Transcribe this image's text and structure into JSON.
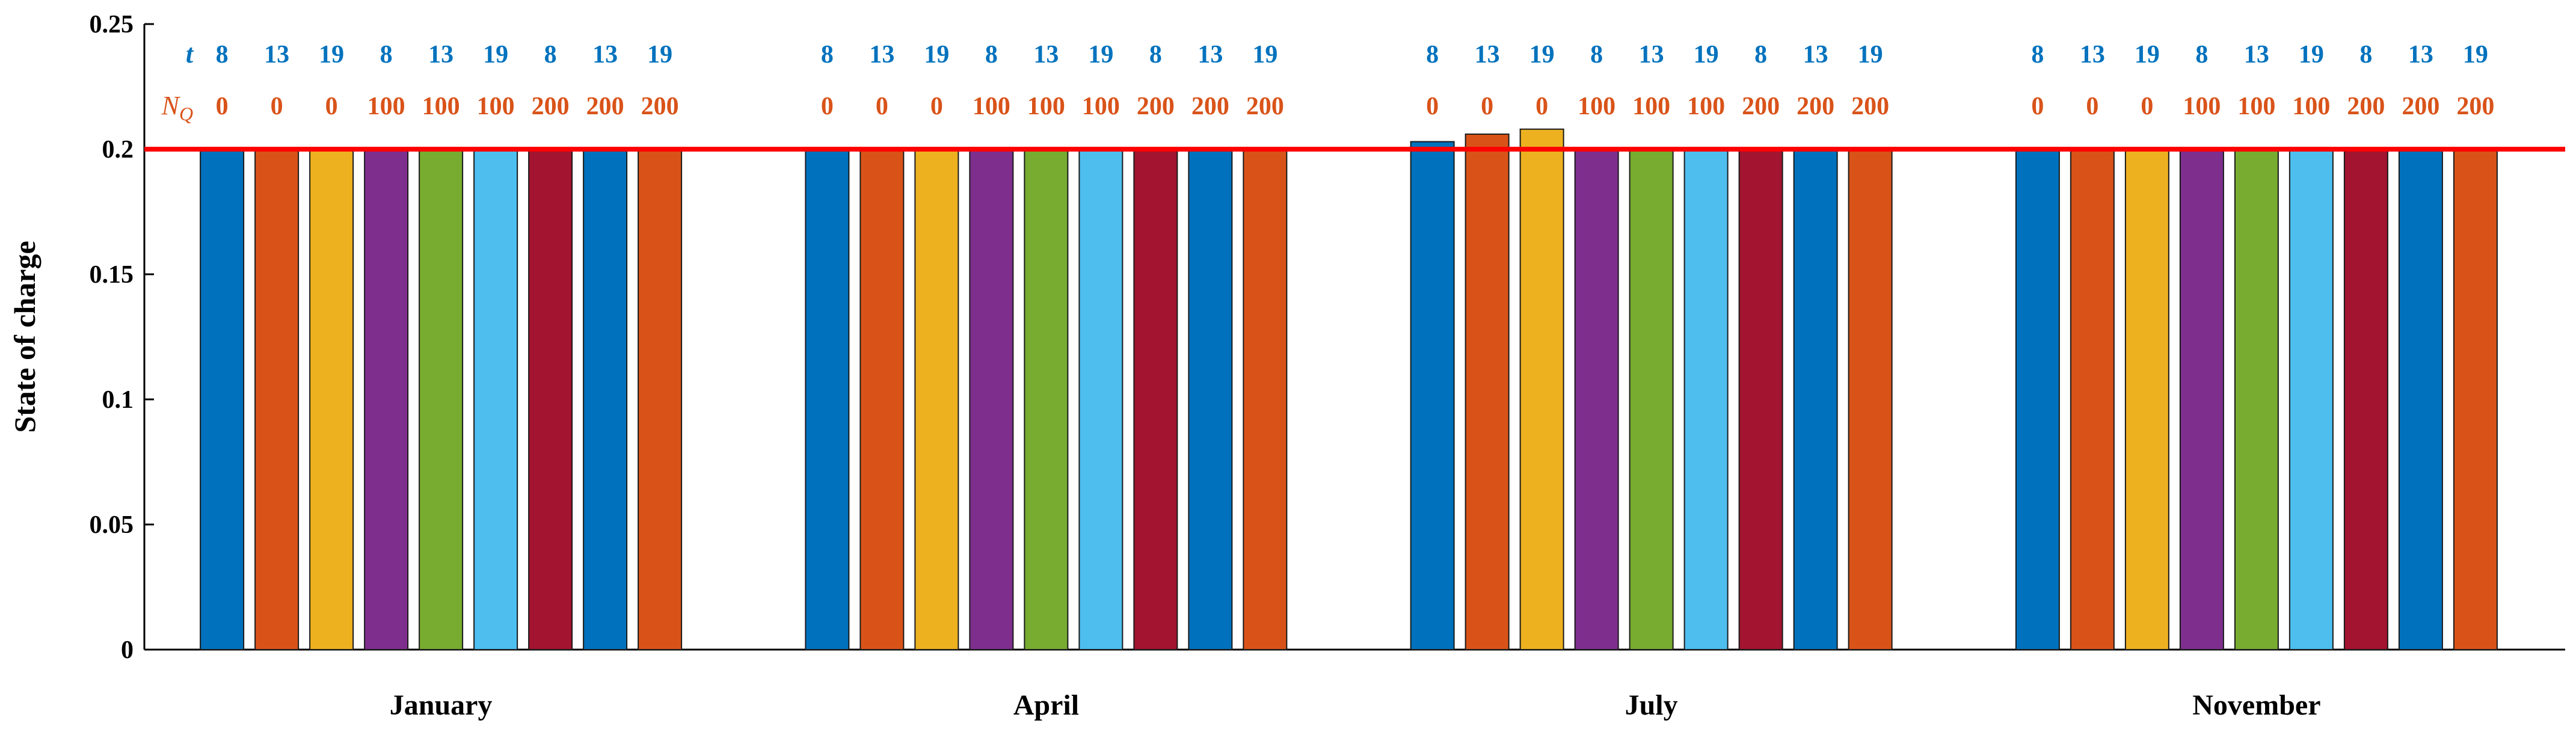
{
  "chart_data": {
    "type": "bar",
    "ylabel": "State of charge",
    "ylim": [
      0,
      0.25
    ],
    "yticks": [
      0,
      0.05,
      0.1,
      0.15,
      0.2,
      0.25
    ],
    "ytick_labels": [
      "0",
      "0.05",
      "0.1",
      "0.15",
      "0.2",
      "0.25"
    ],
    "categories": [
      "January",
      "April",
      "July",
      "November"
    ],
    "header_rows": {
      "t_label": "t",
      "nq_label": "N",
      "nq_subscript": "Q",
      "t": [
        "8",
        "13",
        "19",
        "8",
        "13",
        "19",
        "8",
        "13",
        "19"
      ],
      "nq": [
        "0",
        "0",
        "0",
        "100",
        "100",
        "100",
        "200",
        "200",
        "200"
      ]
    },
    "bar_colors": [
      "#0072BD",
      "#D95319",
      "#EDB120",
      "#7E2F8E",
      "#77AC30",
      "#4DBEEE",
      "#A2142F",
      "#0072BD",
      "#D95319"
    ],
    "values": [
      [
        0.2,
        0.2,
        0.2,
        0.2,
        0.2,
        0.2,
        0.2,
        0.2,
        0.2
      ],
      [
        0.2,
        0.2,
        0.2,
        0.2,
        0.2,
        0.2,
        0.2,
        0.2,
        0.2
      ],
      [
        0.203,
        0.206,
        0.208,
        0.2,
        0.2,
        0.2,
        0.2,
        0.2,
        0.2
      ],
      [
        0.2,
        0.2,
        0.2,
        0.2,
        0.2,
        0.2,
        0.2,
        0.2,
        0.2
      ]
    ],
    "reference_line": {
      "y": 0.2,
      "color": "#FF0000"
    },
    "grid": false
  }
}
